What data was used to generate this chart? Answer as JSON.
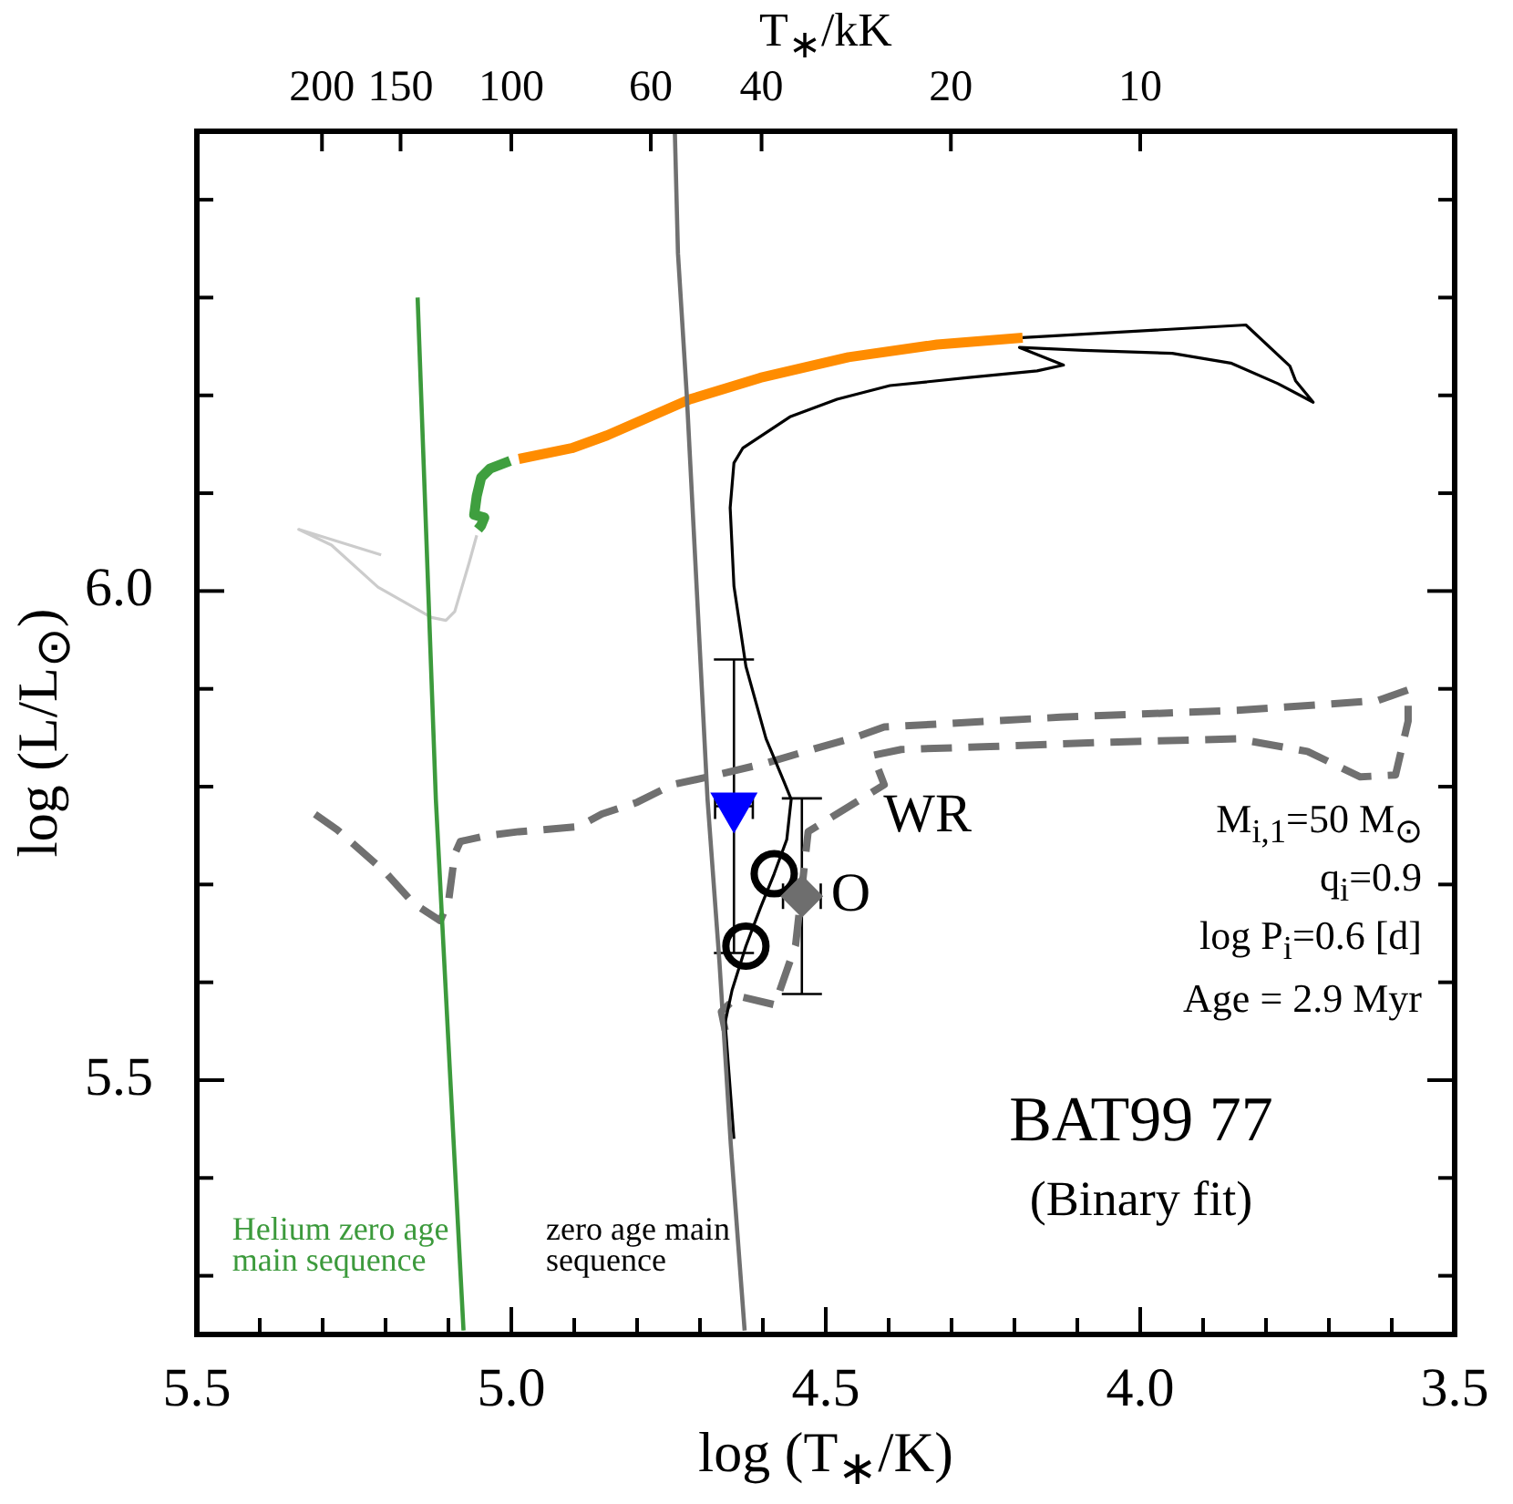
{
  "chart_data": {
    "type": "line",
    "xlabel": "log (T$_{∗}$/K)",
    "ylabel": "log (L/L$_{⊙}$)",
    "x2label": "T$_{∗}$/kK",
    "xlim": [
      5.5,
      3.5
    ],
    "xticks": [
      5.5,
      {
        "value": 5.4,
        "label": null
      },
      {
        "value": 5.3,
        "label": null
      },
      {
        "value": 5.2,
        "label": null
      },
      {
        "value": 5.1,
        "label": null
      },
      {
        "value": 5.0,
        "label": "5.0"
      },
      {
        "value": 4.9,
        "label": null
      },
      {
        "value": 4.8,
        "label": null
      },
      {
        "value": 4.7,
        "label": null
      },
      {
        "value": 4.6,
        "label": null
      },
      4.5,
      {
        "value": 4.4,
        "label": null
      },
      {
        "value": 4.3,
        "label": null
      },
      {
        "value": 4.2,
        "label": null
      },
      {
        "value": 4.1,
        "label": null
      },
      {
        "value": 4.0,
        "label": "4.0"
      },
      {
        "value": 3.9,
        "label": null
      },
      {
        "value": 3.8,
        "label": null
      },
      {
        "value": 3.7,
        "label": null
      },
      {
        "value": 3.6,
        "label": null
      },
      3.5
    ],
    "x2lim": [
      316.2,
      3.162
    ],
    "x2ticks": [
      200,
      150,
      100,
      60,
      40,
      20,
      10
    ],
    "log": "x2",
    "ylim": [
      5.24,
      6.47
    ],
    "yticks": [
      {
        "value": 5.3,
        "label": null
      },
      {
        "value": 5.4,
        "label": null
      },
      5.5,
      {
        "value": 5.6,
        "label": null
      },
      {
        "value": 5.7,
        "label": null
      },
      {
        "value": 5.8,
        "label": null
      },
      {
        "value": 5.9,
        "label": null
      },
      {
        "value": 6.0,
        "label": "6.0"
      },
      {
        "value": 6.1,
        "label": null
      },
      {
        "value": 6.2,
        "label": null
      },
      {
        "value": 6.3,
        "label": null
      },
      {
        "value": 6.4,
        "label": null
      }
    ],
    "series": [
      {
        "name": "Helium zero age main sequence",
        "color": "#3c9a3c",
        "x": [
          5.149,
          5.12,
          5.097,
          5.076
        ],
        "values": [
          6.3,
          5.787,
          5.501,
          5.244
        ]
      },
      {
        "name": "zero age main sequence",
        "color": "#707070",
        "x": [
          4.74,
          4.735,
          4.721,
          4.705,
          4.688,
          4.669,
          4.651,
          4.629
        ],
        "values": [
          6.47,
          6.345,
          6.2,
          6.0,
          5.787,
          5.62,
          5.434,
          5.244
        ]
      },
      {
        "color": "#000000",
        "x": [
          4.646,
          4.654,
          4.66,
          4.649,
          4.627,
          4.604,
          4.582,
          4.562,
          4.555,
          4.567,
          4.595,
          4.627,
          4.646,
          4.652,
          4.646,
          4.632,
          4.557,
          4.482,
          4.398,
          4.276,
          4.164,
          4.122,
          4.192,
          4.09,
          3.949,
          3.856,
          3.781,
          3.725,
          3.753,
          3.762,
          3.832,
          4.187
        ],
        "values": [
          5.44,
          5.508,
          5.559,
          5.592,
          5.637,
          5.676,
          5.711,
          5.746,
          5.787,
          5.806,
          5.849,
          5.923,
          6.005,
          6.085,
          6.131,
          6.146,
          6.178,
          6.196,
          6.21,
          6.218,
          6.225,
          6.231,
          6.249,
          6.246,
          6.243,
          6.233,
          6.212,
          6.193,
          6.215,
          6.23,
          6.272,
          6.259
        ]
      },
      {
        "color": "#ff8c00",
        "x": [
          4.187,
          4.323,
          4.464,
          4.604,
          4.716,
          4.848,
          4.904,
          4.988
        ],
        "values": [
          6.259,
          6.252,
          6.239,
          6.218,
          6.196,
          6.159,
          6.146,
          6.135
        ]
      },
      {
        "color": "#3f9f3f",
        "x": [
          5.002,
          5.034,
          5.048,
          5.055,
          5.059,
          5.043,
          5.048,
          5.053
        ],
        "values": [
          6.133,
          6.125,
          6.116,
          6.097,
          6.078,
          6.075,
          6.067,
          6.063
        ]
      },
      {
        "color": "#cccccc",
        "x": [
          5.055,
          5.067,
          5.09,
          5.104,
          5.127,
          5.212,
          5.286,
          5.338,
          5.207
        ],
        "values": [
          6.057,
          6.029,
          5.979,
          5.97,
          5.973,
          6.004,
          6.047,
          6.063,
          6.037
        ]
      },
      {
        "color": "#707070",
        "line_style": "dashed",
        "x": [
          4.66,
          4.666,
          4.64,
          4.581,
          4.548,
          4.528,
          4.407,
          4.425,
          4.38,
          4.239,
          4.071,
          3.846,
          3.734,
          3.65,
          3.594,
          3.574,
          3.574,
          3.622,
          3.846,
          4.127,
          4.407,
          4.455,
          4.506,
          4.595,
          4.694,
          4.744,
          4.8,
          4.856,
          4.894,
          4.95,
          4.988,
          5.039,
          5.081,
          5.09,
          5.1,
          5.113,
          5.156,
          5.201,
          5.277,
          5.319
        ],
        "values": [
          5.551,
          5.57,
          5.586,
          5.577,
          5.638,
          5.754,
          5.802,
          5.832,
          5.838,
          5.841,
          5.845,
          5.849,
          5.836,
          5.81,
          5.812,
          5.867,
          5.899,
          5.888,
          5.878,
          5.871,
          5.861,
          5.85,
          5.841,
          5.824,
          5.809,
          5.802,
          5.784,
          5.772,
          5.759,
          5.756,
          5.754,
          5.75,
          5.744,
          5.731,
          5.682,
          5.663,
          5.681,
          5.713,
          5.756,
          5.775
        ]
      },
      {
        "type": "scatter",
        "color": "#0000ff",
        "marker": "triangle",
        "x": [
          4.646
        ],
        "values": [
          5.78
        ],
        "errors": [
          0.15
        ],
        "xerrors": [
          0.03
        ]
      },
      {
        "type": "scatter",
        "color": "#6e6e6e",
        "marker": "diamond",
        "x": [
          4.538
        ],
        "values": [
          5.688
        ],
        "errors": [
          0.1
        ],
        "xerrors": [
          0.03
        ]
      },
      {
        "type": "scatter",
        "color": "#000000",
        "marker": "circle",
        "x": [
          4.582,
          4.627
        ],
        "values": [
          5.711,
          5.637
        ]
      }
    ],
    "annotations": [
      {
        "text": "WR",
        "x": 4.646,
        "y": 5.78
      },
      {
        "text": "O",
        "x": 4.538,
        "y": 5.688
      },
      "M$_{i,1}$=50 M$_{⊙}$",
      "q$_{i}$=0.9",
      "log P$_{i}$=0.6 [d]",
      "Age = 2.9 Myr",
      "BAT99 77",
      "(Binary fit)"
    ]
  }
}
